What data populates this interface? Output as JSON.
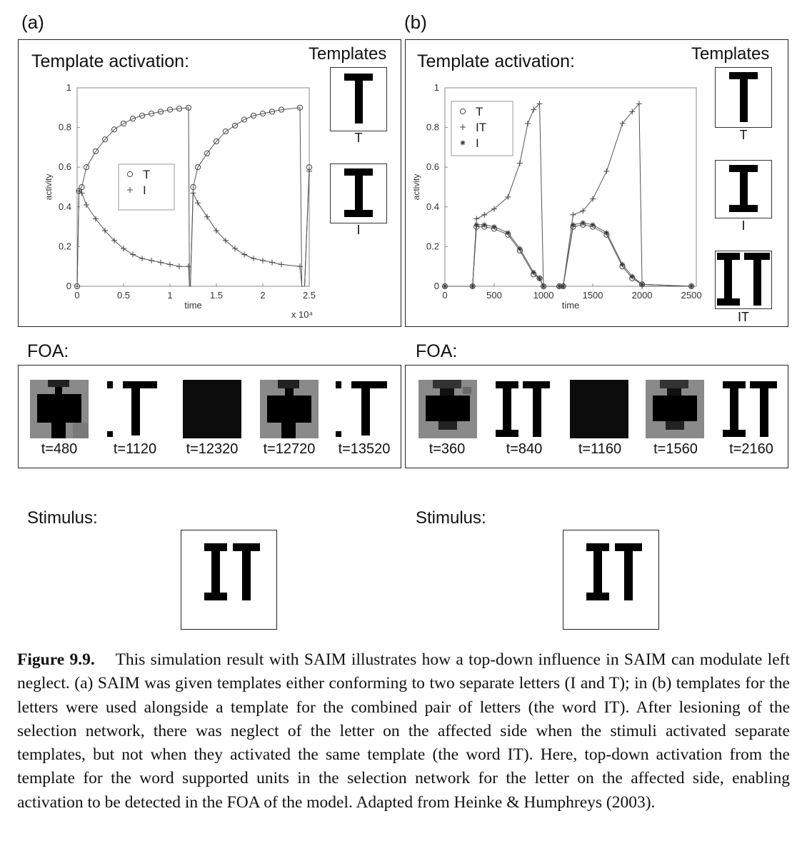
{
  "panels": {
    "a": {
      "letter": "(a)",
      "activation_title": "Template activation:",
      "templates_title": "Templates",
      "template_labels": [
        "T",
        "I"
      ],
      "foa_title": "FOA:",
      "foa_times": [
        "t=480",
        "t=1120",
        "t=12320",
        "t=12720",
        "t=13520"
      ],
      "stimulus_title": "Stimulus:",
      "stimulus_text": "IT"
    },
    "b": {
      "letter": "(b)",
      "activation_title": "Template activation:",
      "templates_title": "Templates",
      "template_labels": [
        "T",
        "I",
        "IT"
      ],
      "foa_title": "FOA:",
      "foa_times": [
        "t=360",
        "t=840",
        "t=1160",
        "t=1560",
        "t=2160"
      ],
      "stimulus_title": "Stimulus:",
      "stimulus_text": "IT"
    }
  },
  "chart_data": [
    {
      "type": "line",
      "panel": "(a)",
      "xlabel": "time",
      "ylabel": "activity",
      "x_multiplier": "x 10⁴",
      "xlim": [
        0,
        2.5
      ],
      "ylim": [
        0,
        1
      ],
      "xticks": [
        "0",
        "0.5",
        "1",
        "1.5",
        "2",
        "2.5"
      ],
      "yticks": [
        "0",
        "0.2",
        "0.4",
        "0.6",
        "0.8",
        "1"
      ],
      "legend": {
        "placement": "center-left",
        "entries": [
          {
            "marker": "o",
            "label": "T"
          },
          {
            "marker": "+",
            "label": "I"
          }
        ]
      },
      "series": [
        {
          "name": "T",
          "marker": "o",
          "x": [
            0,
            0.02,
            0.05,
            0.1,
            0.2,
            0.3,
            0.4,
            0.5,
            0.6,
            0.7,
            0.8,
            0.9,
            1.0,
            1.1,
            1.2,
            1.21,
            1.22,
            1.25,
            1.3,
            1.4,
            1.5,
            1.6,
            1.7,
            1.8,
            1.9,
            2.0,
            2.1,
            2.2,
            2.4,
            2.42,
            2.45,
            2.5
          ],
          "y": [
            0,
            0.48,
            0.5,
            0.6,
            0.68,
            0.74,
            0.79,
            0.82,
            0.845,
            0.86,
            0.87,
            0.88,
            0.89,
            0.895,
            0.9,
            0.0,
            0.0,
            0.5,
            0.6,
            0.67,
            0.73,
            0.78,
            0.81,
            0.84,
            0.86,
            0.87,
            0.88,
            0.89,
            0.9,
            0.0,
            0.0,
            0.6
          ]
        },
        {
          "name": "I",
          "marker": "+",
          "x": [
            0,
            0.02,
            0.05,
            0.1,
            0.2,
            0.3,
            0.4,
            0.5,
            0.6,
            0.7,
            0.8,
            0.9,
            1.0,
            1.1,
            1.2,
            1.21,
            1.22,
            1.25,
            1.3,
            1.4,
            1.5,
            1.6,
            1.7,
            1.8,
            1.9,
            2.0,
            2.1,
            2.2,
            2.4,
            2.42,
            2.45,
            2.5
          ],
          "y": [
            0,
            0.48,
            0.47,
            0.41,
            0.34,
            0.28,
            0.23,
            0.19,
            0.16,
            0.14,
            0.13,
            0.12,
            0.11,
            0.1,
            0.1,
            0.0,
            0.0,
            0.47,
            0.42,
            0.35,
            0.28,
            0.23,
            0.19,
            0.16,
            0.14,
            0.13,
            0.12,
            0.11,
            0.1,
            0.0,
            0.0,
            0.58
          ]
        }
      ]
    },
    {
      "type": "line",
      "panel": "(b)",
      "xlabel": "time",
      "ylabel": "activity",
      "xlim": [
        0,
        2550
      ],
      "ylim": [
        0,
        1
      ],
      "xticks": [
        "0",
        "500",
        "1000",
        "1500",
        "2000",
        "2500"
      ],
      "yticks": [
        "0",
        "0.2",
        "0.4",
        "0.6",
        "0.8",
        "1"
      ],
      "legend": {
        "placement": "top-left",
        "entries": [
          {
            "marker": "o",
            "label": "T"
          },
          {
            "marker": "+",
            "label": "IT"
          },
          {
            "marker": "*",
            "label": "I"
          }
        ]
      },
      "series": [
        {
          "name": "T",
          "marker": "o",
          "x": [
            0,
            280,
            320,
            400,
            500,
            640,
            760,
            900,
            960,
            1000,
            1160,
            1200,
            1300,
            1400,
            1500,
            1640,
            1800,
            1900,
            2000,
            2500
          ],
          "y": [
            0,
            0,
            0.3,
            0.3,
            0.29,
            0.26,
            0.18,
            0.06,
            0.04,
            0.0,
            0.0,
            0.0,
            0.3,
            0.31,
            0.3,
            0.26,
            0.1,
            0.04,
            0.01,
            0.0
          ]
        },
        {
          "name": "IT",
          "marker": "+",
          "x": [
            0,
            280,
            320,
            400,
            500,
            640,
            760,
            840,
            900,
            960,
            1000,
            1160,
            1200,
            1300,
            1400,
            1500,
            1640,
            1800,
            1900,
            1970,
            2000,
            2500
          ],
          "y": [
            0,
            0,
            0.34,
            0.36,
            0.39,
            0.45,
            0.62,
            0.82,
            0.89,
            0.92,
            0.0,
            0.0,
            0.0,
            0.36,
            0.38,
            0.44,
            0.58,
            0.82,
            0.88,
            0.92,
            0.0,
            0.0
          ]
        },
        {
          "name": "I",
          "marker": "*",
          "x": [
            0,
            280,
            320,
            400,
            500,
            640,
            760,
            900,
            960,
            1000,
            1160,
            1200,
            1300,
            1400,
            1500,
            1640,
            1800,
            1900,
            2000,
            2500
          ],
          "y": [
            0,
            0,
            0.31,
            0.31,
            0.3,
            0.27,
            0.19,
            0.07,
            0.04,
            0.0,
            0.0,
            0.0,
            0.31,
            0.32,
            0.31,
            0.27,
            0.11,
            0.05,
            0.01,
            0.0
          ]
        }
      ]
    }
  ],
  "caption": {
    "label": "Figure 9.9.",
    "text": "This simulation result with SAIM illustrates how a top-down influence in SAIM can modulate left neglect. (a) SAIM was given templates either conforming to two separate letters (I and T); in (b) templates for the letters were used alongside a template for the combined pair of letters (the word IT). After lesioning of the selection network, there was neglect of the letter on the affected side when the stimuli activated separate templates, but not when they activated the same template (the word IT). Here, top-down activation from the template for the word supported units in the selection network for the letter on the affected side, enabling activation to be detected in the FOA of the model. Adapted from Heinke & Humphreys (2003)."
  }
}
